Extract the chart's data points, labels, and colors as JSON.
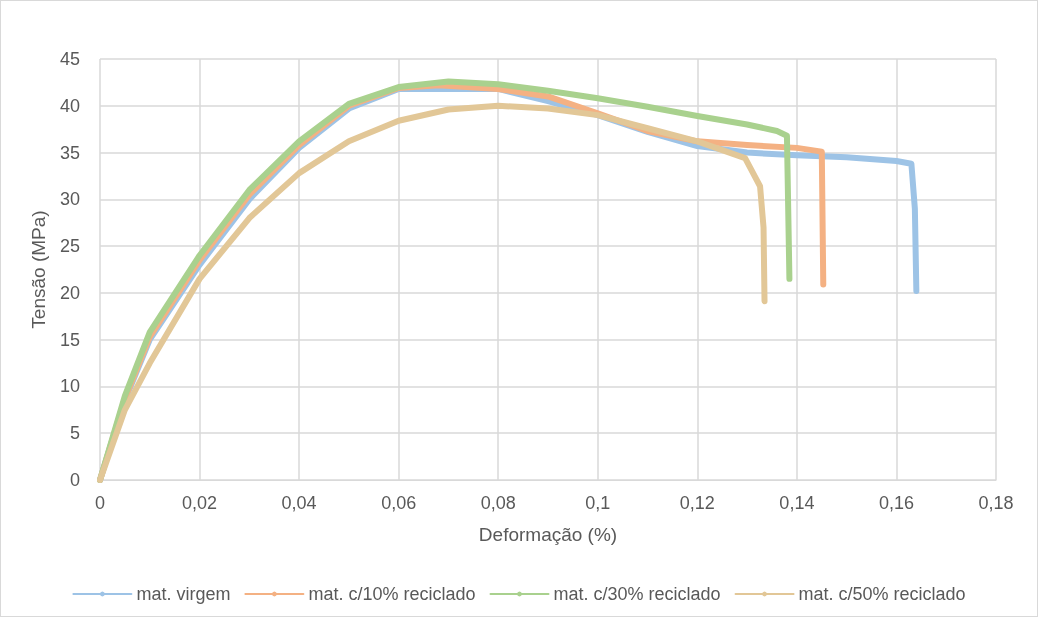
{
  "chart_data": {
    "type": "line",
    "xlabel": "Deformação (%)",
    "ylabel": "Tensão (MPa)",
    "xlim": [
      0,
      0.18
    ],
    "xticks": [
      {
        "value": 0,
        "label": "0"
      },
      {
        "value": 0.02,
        "label": "0,02"
      },
      {
        "value": 0.04,
        "label": "0,04"
      },
      {
        "value": 0.06,
        "label": "0,06"
      },
      {
        "value": 0.08,
        "label": "0,08"
      },
      {
        "value": 0.1,
        "label": "0,1"
      },
      {
        "value": 0.12,
        "label": "0,12"
      },
      {
        "value": 0.14,
        "label": "0,14"
      },
      {
        "value": 0.16,
        "label": "0,16"
      },
      {
        "value": 0.18,
        "label": "0,18"
      }
    ],
    "ylim": [
      0,
      45
    ],
    "yticks": [
      0,
      5,
      10,
      15,
      20,
      25,
      30,
      35,
      40,
      45
    ],
    "grid": true,
    "legend": "bottom",
    "marker": "none",
    "line_style": "solid",
    "series": [
      {
        "name": "mat. virgem",
        "color": "#9dc3e6",
        "x": [
          0,
          0.005,
          0.01,
          0.02,
          0.03,
          0.04,
          0.05,
          0.06,
          0.08,
          0.09,
          0.1,
          0.11,
          0.12,
          0.13,
          0.14,
          0.15,
          0.16,
          0.163,
          0.1637,
          0.164
        ],
        "values": [
          0,
          8.5,
          15,
          23,
          30,
          35.5,
          39.7,
          41.8,
          41.8,
          40.5,
          39,
          37.2,
          35.7,
          35,
          34.7,
          34.5,
          34.1,
          33.8,
          29,
          20.2
        ]
      },
      {
        "name": "mat. c/10% reciclado",
        "color": "#f4b183",
        "x": [
          0,
          0.005,
          0.01,
          0.02,
          0.03,
          0.04,
          0.05,
          0.06,
          0.068,
          0.08,
          0.09,
          0.1,
          0.11,
          0.12,
          0.13,
          0.14,
          0.145,
          0.1453
        ],
        "values": [
          0,
          8.7,
          15.3,
          23.5,
          30.5,
          35.8,
          40,
          41.9,
          42.2,
          41.8,
          41,
          39.2,
          37.3,
          36.2,
          35.8,
          35.5,
          35.1,
          20.9
        ]
      },
      {
        "name": "mat. c/30% reciclado",
        "color": "#a9d18e",
        "x": [
          0,
          0.005,
          0.01,
          0.02,
          0.03,
          0.04,
          0.05,
          0.06,
          0.07,
          0.08,
          0.09,
          0.1,
          0.11,
          0.12,
          0.13,
          0.136,
          0.138,
          0.1385
        ],
        "values": [
          0,
          9,
          15.8,
          24,
          31,
          36.2,
          40.2,
          42,
          42.6,
          42.3,
          41.6,
          40.8,
          39.9,
          38.9,
          38,
          37.3,
          36.8,
          21.5
        ]
      },
      {
        "name": "mat. c/50% reciclado",
        "color": "#e2c797",
        "x": [
          0,
          0.005,
          0.01,
          0.02,
          0.03,
          0.04,
          0.05,
          0.06,
          0.07,
          0.08,
          0.09,
          0.1,
          0.11,
          0.12,
          0.1296,
          0.1326,
          0.1333,
          0.1335
        ],
        "values": [
          0,
          7.5,
          12.5,
          21.5,
          28,
          32.8,
          36.2,
          38.4,
          39.6,
          40,
          39.7,
          39,
          37.6,
          36.2,
          34.4,
          31.4,
          27,
          19.1
        ]
      }
    ]
  }
}
